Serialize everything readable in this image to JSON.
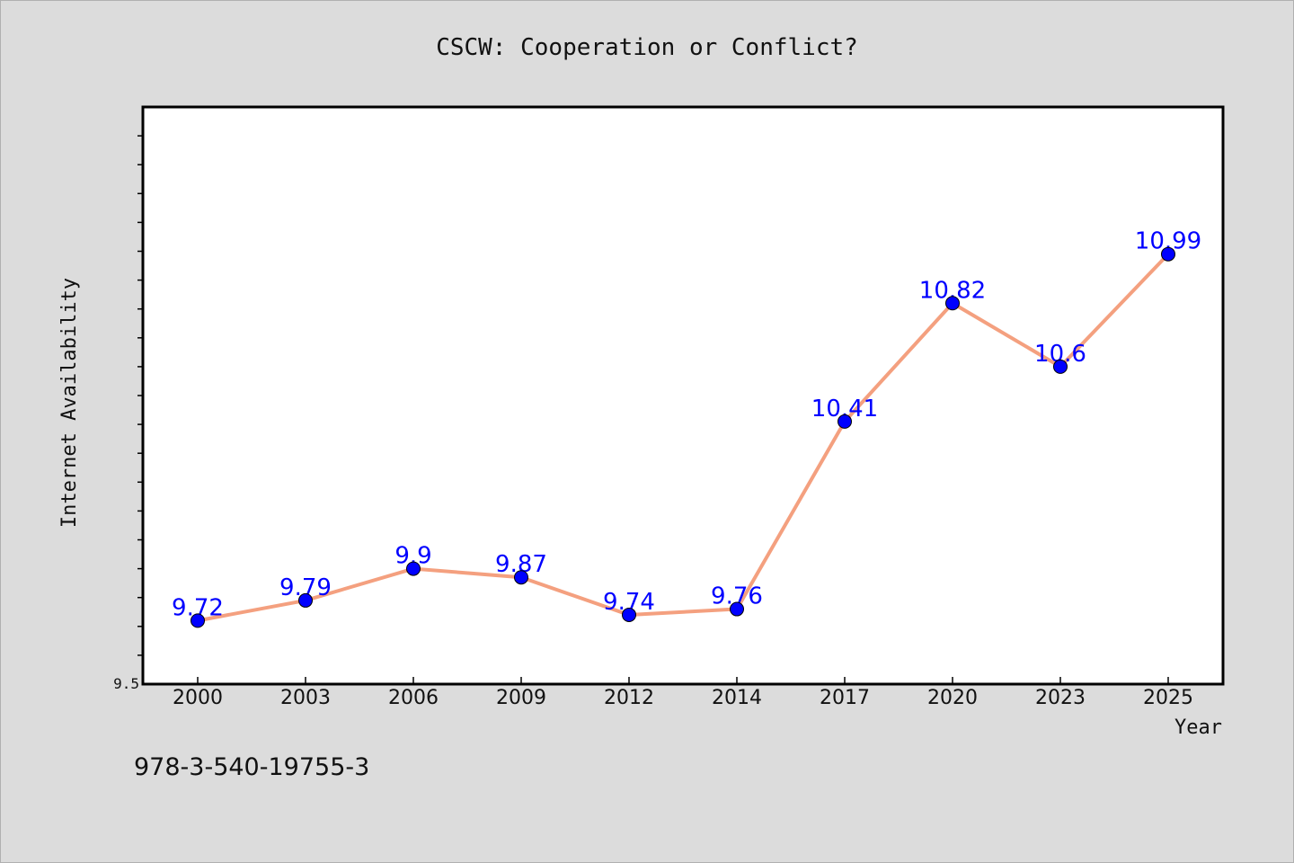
{
  "chart_data": {
    "type": "line",
    "title": "CSCW: Cooperation or Conflict?",
    "xlabel": "Year",
    "ylabel": "Internet Availability",
    "categories": [
      "2000",
      "2003",
      "2006",
      "2009",
      "2012",
      "2014",
      "2017",
      "2020",
      "2023",
      "2025"
    ],
    "series": [
      {
        "values": [
          9.72,
          9.79,
          9.9,
          9.87,
          9.74,
          9.76,
          10.41,
          10.82,
          10.6,
          10.99
        ]
      }
    ],
    "data_labels": [
      "9.72",
      "9.79",
      "9.9",
      "9.87",
      "9.74",
      "9.76",
      "10.41",
      "10.82",
      "10.6",
      "10.99"
    ],
    "yticks": [
      "9.5"
    ],
    "ylim": [
      9.5,
      11.5
    ],
    "grid": false,
    "line_color": "#f4a07f",
    "marker_color": "#0000ff",
    "label_color": "#0000ff"
  },
  "footer": {
    "text": "978-3-540-19755-3"
  }
}
